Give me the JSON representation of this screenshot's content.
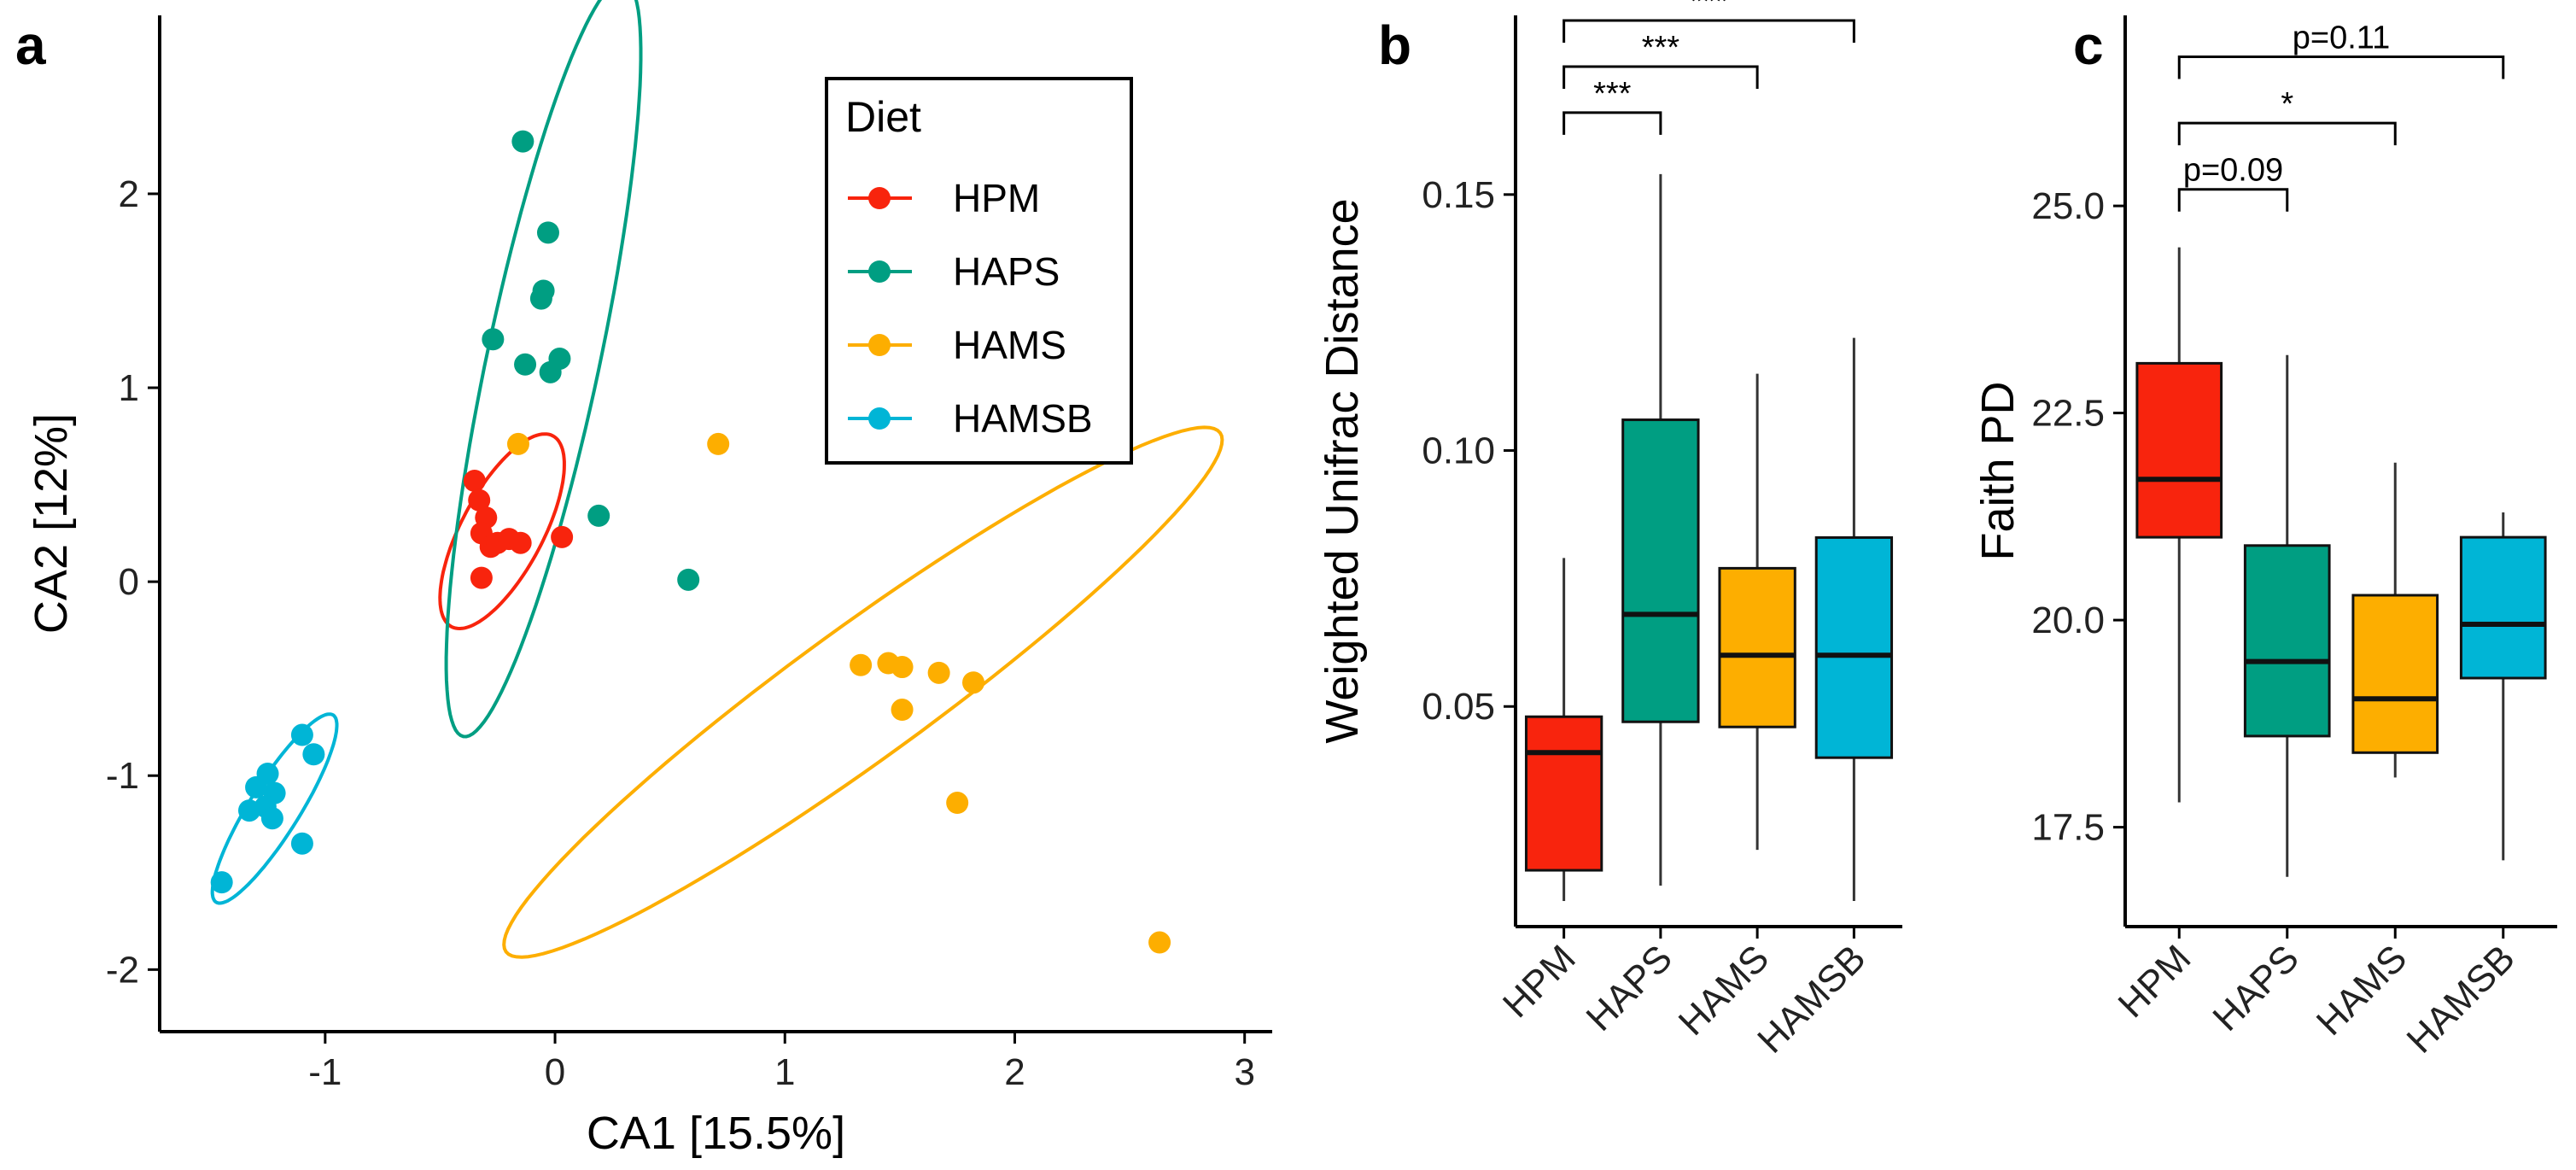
{
  "colors": {
    "HPM": "#f8240d",
    "HAPS": "#009e82",
    "HAMS": "#fdae00",
    "HAMSB": "#00b5d6"
  },
  "chart_data": [
    {
      "panel": "a",
      "type": "scatter",
      "xlabel": "CA1   [15.5%]",
      "ylabel": "CA2   [12%]",
      "xlim": [
        -1.72,
        3.12
      ],
      "ylim": [
        -2.32,
        2.92
      ],
      "xticks": [
        -1,
        0,
        1,
        2,
        3
      ],
      "yticks": [
        -2,
        -1,
        0,
        1,
        2
      ],
      "legend": {
        "title": "Diet",
        "position": "top-right",
        "entries": [
          "HPM",
          "HAPS",
          "HAMS",
          "HAMSB"
        ]
      },
      "series": [
        {
          "name": "HPM",
          "points": [
            [
              -0.35,
              0.52
            ],
            [
              -0.33,
              0.42
            ],
            [
              -0.3,
              0.33
            ],
            [
              -0.32,
              0.25
            ],
            [
              -0.28,
              0.18
            ],
            [
              -0.25,
              0.2
            ],
            [
              -0.2,
              0.22
            ],
            [
              -0.15,
              0.2
            ],
            [
              -0.32,
              0.02
            ],
            [
              0.03,
              0.23
            ]
          ],
          "ellipse": {
            "cx": -0.23,
            "cy": 0.26,
            "rx": 0.47,
            "ry": 0.21,
            "angle": -62
          }
        },
        {
          "name": "HAPS",
          "points": [
            [
              -0.14,
              2.27
            ],
            [
              -0.03,
              1.8
            ],
            [
              -0.05,
              1.5
            ],
            [
              -0.06,
              1.46
            ],
            [
              -0.27,
              1.25
            ],
            [
              0.02,
              1.15
            ],
            [
              -0.13,
              1.12
            ],
            [
              -0.02,
              1.08
            ],
            [
              0.19,
              0.34
            ],
            [
              0.58,
              0.01
            ]
          ],
          "ellipse": {
            "cx": -0.05,
            "cy": 1.15,
            "rx": 1.68,
            "ry": 0.29,
            "angle": -78
          }
        },
        {
          "name": "HAMS",
          "points": [
            [
              -0.16,
              0.71
            ],
            [
              0.71,
              0.71
            ],
            [
              1.33,
              -0.43
            ],
            [
              1.45,
              -0.42
            ],
            [
              1.51,
              -0.44
            ],
            [
              1.67,
              -0.47
            ],
            [
              1.82,
              -0.52
            ],
            [
              1.51,
              -0.66
            ],
            [
              1.75,
              -1.14
            ],
            [
              2.63,
              -1.86
            ]
          ],
          "ellipse": {
            "cx": 1.34,
            "cy": -0.57,
            "rx": 1.92,
            "ry": 0.34,
            "angle": -36
          }
        },
        {
          "name": "HAMSB",
          "points": [
            [
              -1.1,
              -0.79
            ],
            [
              -1.05,
              -0.89
            ],
            [
              -1.25,
              -0.99
            ],
            [
              -1.3,
              -1.06
            ],
            [
              -1.22,
              -1.09
            ],
            [
              -1.33,
              -1.18
            ],
            [
              -1.26,
              -1.16
            ],
            [
              -1.23,
              -1.22
            ],
            [
              -1.1,
              -1.35
            ],
            [
              -1.45,
              -1.55
            ]
          ],
          "ellipse": {
            "cx": -1.22,
            "cy": -1.17,
            "rx": 0.48,
            "ry": 0.13,
            "angle": -58
          }
        }
      ]
    },
    {
      "panel": "b",
      "type": "box",
      "ylabel": "Weighted Unifrac Distance",
      "ylim": [
        0.007,
        0.185
      ],
      "yticks": [
        0.05,
        0.1,
        0.15
      ],
      "ytick_labels": [
        "0.05",
        "0.10",
        "0.15"
      ],
      "categories": [
        "HPM",
        "HAPS",
        "HAMS",
        "HAMSB"
      ],
      "boxes": [
        {
          "min": 0.012,
          "q1": 0.018,
          "median": 0.041,
          "q3": 0.048,
          "max": 0.079
        },
        {
          "min": 0.015,
          "q1": 0.047,
          "median": 0.068,
          "q3": 0.106,
          "max": 0.154
        },
        {
          "min": 0.022,
          "q1": 0.046,
          "median": 0.06,
          "q3": 0.077,
          "max": 0.115
        },
        {
          "min": 0.012,
          "q1": 0.04,
          "median": 0.06,
          "q3": 0.083,
          "max": 0.122
        }
      ],
      "comparisons": [
        {
          "from": "HPM",
          "to": "HAPS",
          "label": "***",
          "y": 0.166
        },
        {
          "from": "HPM",
          "to": "HAMS",
          "label": "***",
          "y": 0.175
        },
        {
          "from": "HPM",
          "to": "HAMSB",
          "label": "***",
          "y": 0.184
        }
      ]
    },
    {
      "panel": "c",
      "type": "box",
      "ylabel": "Faith PD",
      "ylim": [
        16.3,
        27.3
      ],
      "yticks": [
        17.5,
        20,
        22.5,
        25
      ],
      "ytick_labels": [
        "17.5",
        "20.0",
        "22.5",
        "25.0"
      ],
      "categories": [
        "HPM",
        "HAPS",
        "HAMS",
        "HAMSB"
      ],
      "boxes": [
        {
          "min": 17.8,
          "q1": 21.0,
          "median": 21.7,
          "q3": 23.1,
          "max": 24.5
        },
        {
          "min": 16.9,
          "q1": 18.6,
          "median": 19.5,
          "q3": 20.9,
          "max": 23.2
        },
        {
          "min": 18.1,
          "q1": 18.4,
          "median": 19.05,
          "q3": 20.3,
          "max": 21.9
        },
        {
          "min": 17.1,
          "q1": 19.3,
          "median": 19.95,
          "q3": 21.0,
          "max": 21.3
        }
      ],
      "comparisons": [
        {
          "from": "HPM",
          "to": "HAPS",
          "label": "p=0.09",
          "y": 25.2
        },
        {
          "from": "HPM",
          "to": "HAMS",
          "label": "*",
          "y": 26.0
        },
        {
          "from": "HPM",
          "to": "HAMSB",
          "label": "p=0.11",
          "y": 26.8
        }
      ]
    }
  ]
}
